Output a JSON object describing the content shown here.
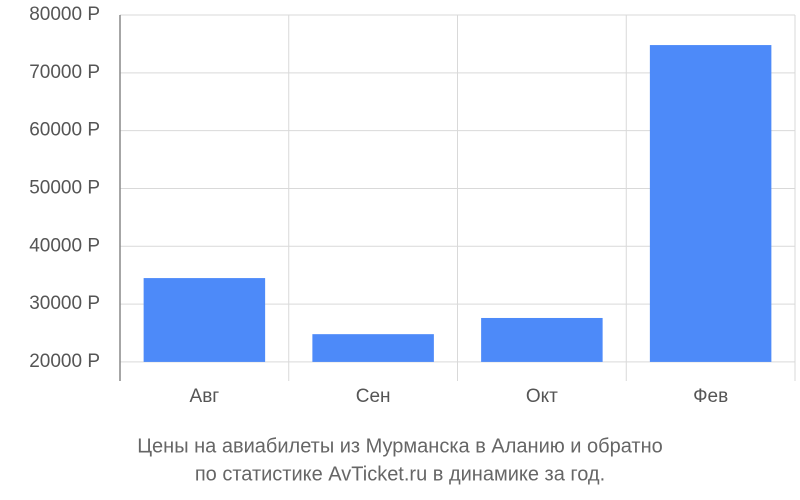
{
  "chart_data": {
    "type": "bar",
    "title": "Цены на авиабилеты из Мурманска в Аланию и обратно",
    "subtitle": "по статистике AvTicket.ru в динамике за год.",
    "categories": [
      "Авг",
      "Сен",
      "Окт",
      "Фев"
    ],
    "values": [
      34500,
      24800,
      27600,
      74800
    ],
    "color": "#4d8af9",
    "ylim": [
      16700,
      80000
    ],
    "yticks": [
      {
        "value": 20000,
        "label": "20000 Р"
      },
      {
        "value": 30000,
        "label": "30000 Р"
      },
      {
        "value": 40000,
        "label": "40000 Р"
      },
      {
        "value": 50000,
        "label": "50000 Р"
      },
      {
        "value": 60000,
        "label": "60000 Р"
      },
      {
        "value": 70000,
        "label": "70000 Р"
      },
      {
        "value": 80000,
        "label": "80000 Р"
      }
    ],
    "grid": true
  }
}
